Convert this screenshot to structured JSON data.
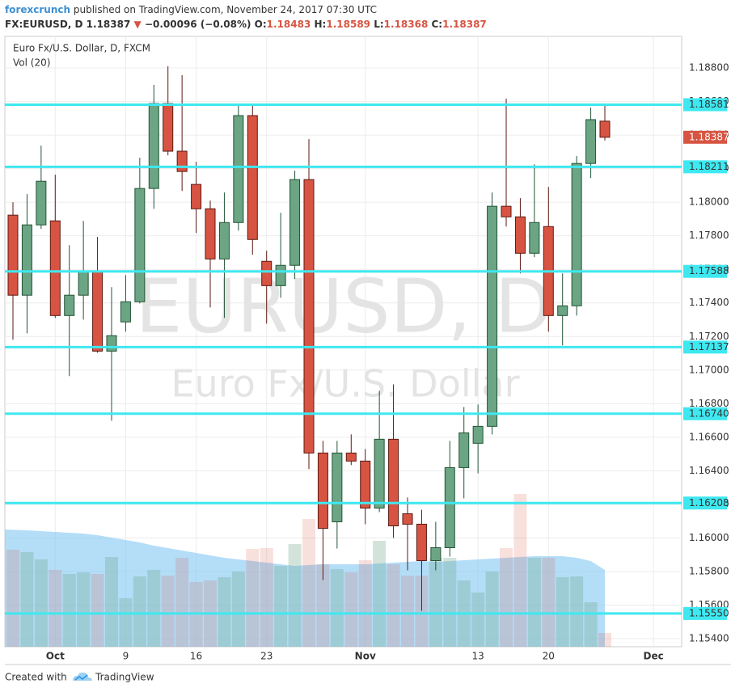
{
  "header": {
    "author": "forexcrunch",
    "published": "published on TradingView.com, November 24, 2017 07:30 UTC",
    "symbol": "FX:EURUSD, D",
    "direction": "▼",
    "change": "−0.00096 (−0.08%)",
    "o_label": "O:",
    "h_label": "H:",
    "l_label": "L:",
    "c_label": "C:"
  },
  "footer": {
    "created": "Created with",
    "brand": "TradingView"
  },
  "chart_data": {
    "type": "candlestick",
    "legend": "Euro Fx/U.S. Dollar, D, FXCM",
    "volume_legend": "Vol (20)",
    "watermark": "EURUSD, D",
    "watermark_sub": "Euro Fx/U.S. Dollar",
    "categories": [
      null,
      null,
      null,
      "Oct",
      null,
      null,
      null,
      null,
      "9",
      null,
      null,
      null,
      null,
      "16",
      null,
      null,
      null,
      null,
      "23",
      null,
      null,
      null,
      null,
      null,
      null,
      "Nov",
      null,
      null,
      null,
      null,
      null,
      null,
      null,
      "13",
      null,
      null,
      null,
      null,
      "20",
      null,
      null,
      null,
      null
    ],
    "future_label": "Dec",
    "open": [
      1.17923,
      1.17446,
      1.17865,
      1.17889,
      1.17325,
      1.17446,
      1.1759,
      1.17113,
      1.17287,
      1.17407,
      1.18082,
      1.18588,
      1.18304,
      1.18106,
      1.17961,
      1.17662,
      1.17879,
      1.18516,
      1.17648,
      1.17503,
      1.17624,
      1.18135,
      1.16506,
      1.16096,
      1.16506,
      1.16458,
      1.16178,
      1.16588,
      1.16144,
      1.16082,
      1.15865,
      1.15942,
      1.16419,
      1.16564,
      1.16665,
      1.17976,
      1.17913,
      1.17696,
      1.17855,
      1.17325,
      1.17383,
      1.18231,
      1.18483
    ],
    "high": [
      1.18,
      1.18048,
      1.18337,
      1.18164,
      1.17744,
      1.17889,
      1.17793,
      1.17494,
      1.17566,
      1.18265,
      1.18699,
      1.1881,
      1.18757,
      1.18241,
      1.1801,
      1.18058,
      1.18588,
      1.18578,
      1.17711,
      1.17937,
      1.18188,
      1.18376,
      1.16578,
      1.16578,
      1.16617,
      1.1653,
      1.16877,
      1.16915,
      1.16241,
      1.16168,
      1.16096,
      1.16578,
      1.1678,
      1.16795,
      1.18058,
      1.18617,
      1.18024,
      1.18226,
      1.18091,
      1.17576,
      1.18275,
      1.18564,
      1.18589
    ],
    "low": [
      1.17181,
      1.17219,
      1.17841,
      1.17311,
      1.16964,
      1.17301,
      1.17103,
      1.16698,
      1.17229,
      1.17397,
      1.17961,
      1.18279,
      1.18067,
      1.17817,
      1.17373,
      1.17311,
      1.17831,
      1.17687,
      1.17277,
      1.17431,
      1.17542,
      1.1641,
      1.15749,
      1.15937,
      1.16434,
      1.16082,
      1.16154,
      1.16,
      1.15807,
      1.15566,
      1.15807,
      1.15889,
      1.16236,
      1.16385,
      1.16617,
      1.17855,
      1.17576,
      1.17672,
      1.17229,
      1.17147,
      1.17325,
      1.18144,
      1.18368
    ],
    "close": [
      1.17446,
      1.17865,
      1.18125,
      1.17325,
      1.17446,
      1.1759,
      1.17113,
      1.17205,
      1.17407,
      1.18082,
      1.18588,
      1.18304,
      1.18183,
      1.17961,
      1.17662,
      1.17879,
      1.18516,
      1.17778,
      1.17503,
      1.17624,
      1.18135,
      1.16506,
      1.16057,
      1.16506,
      1.16458,
      1.16178,
      1.16588,
      1.16072,
      1.16082,
      1.15865,
      1.15942,
      1.16419,
      1.16626,
      1.16665,
      1.17976,
      1.17913,
      1.17696,
      1.17879,
      1.17325,
      1.17383,
      1.18231,
      1.18492,
      1.18387
    ],
    "volume": [
      120,
      117,
      108,
      95,
      90,
      92,
      90,
      111,
      60,
      87,
      95,
      88,
      110,
      80,
      82,
      86,
      93,
      121,
      122,
      100,
      127,
      158,
      102,
      96,
      92,
      107,
      131,
      102,
      88,
      88,
      110,
      110,
      82,
      67,
      93,
      122,
      189,
      110,
      110,
      86,
      87,
      55,
      17
    ],
    "volume_ma": [
      145,
      144,
      143,
      142,
      141,
      140,
      138,
      135,
      132,
      129,
      125,
      122,
      119,
      116,
      113,
      110,
      108,
      106,
      104,
      102,
      100,
      101,
      102,
      102,
      102,
      102,
      103,
      104,
      105,
      106,
      105,
      106,
      107,
      108,
      109,
      110,
      111,
      112,
      112,
      112,
      110,
      106,
      95
    ],
    "volume_lim": [
      0,
      755
    ],
    "ylim": [
      1.15352,
      1.18988
    ],
    "yticks": [
      {
        "value": 1.154,
        "label": "1.15400"
      },
      {
        "value": 1.156,
        "label": "1.15600"
      },
      {
        "value": 1.158,
        "label": "1.15800"
      },
      {
        "value": 1.16,
        "label": "1.16000"
      },
      {
        "value": 1.162,
        "label": "1.16200"
      },
      {
        "value": 1.164,
        "label": "1.16400"
      },
      {
        "value": 1.166,
        "label": "1.16600"
      },
      {
        "value": 1.168,
        "label": "1.16800"
      },
      {
        "value": 1.17,
        "label": "1.17000"
      },
      {
        "value": 1.172,
        "label": "1.17200"
      },
      {
        "value": 1.174,
        "label": "1.17400"
      },
      {
        "value": 1.176,
        "label": "1.17600"
      },
      {
        "value": 1.178,
        "label": "1.17800"
      },
      {
        "value": 1.18,
        "label": "1.18000"
      },
      {
        "value": 1.182,
        "label": "1.18200"
      },
      {
        "value": 1.184,
        "label": "1.18400"
      },
      {
        "value": 1.186,
        "label": "1.18600"
      },
      {
        "value": 1.188,
        "label": "1.18800"
      }
    ],
    "levels": [
      1.18581,
      1.18211,
      1.17588,
      1.17137,
      {
        "value": 1.1674,
        "label": "1.16740"
      },
      1.16208,
      {
        "value": 1.1555,
        "label": "1.15550"
      }
    ],
    "grid": true,
    "up_color": "#6ba583",
    "down_color": "#d75442",
    "level_color": "#3ee8f0",
    "volume_ma_color": "#8ccbf5"
  }
}
